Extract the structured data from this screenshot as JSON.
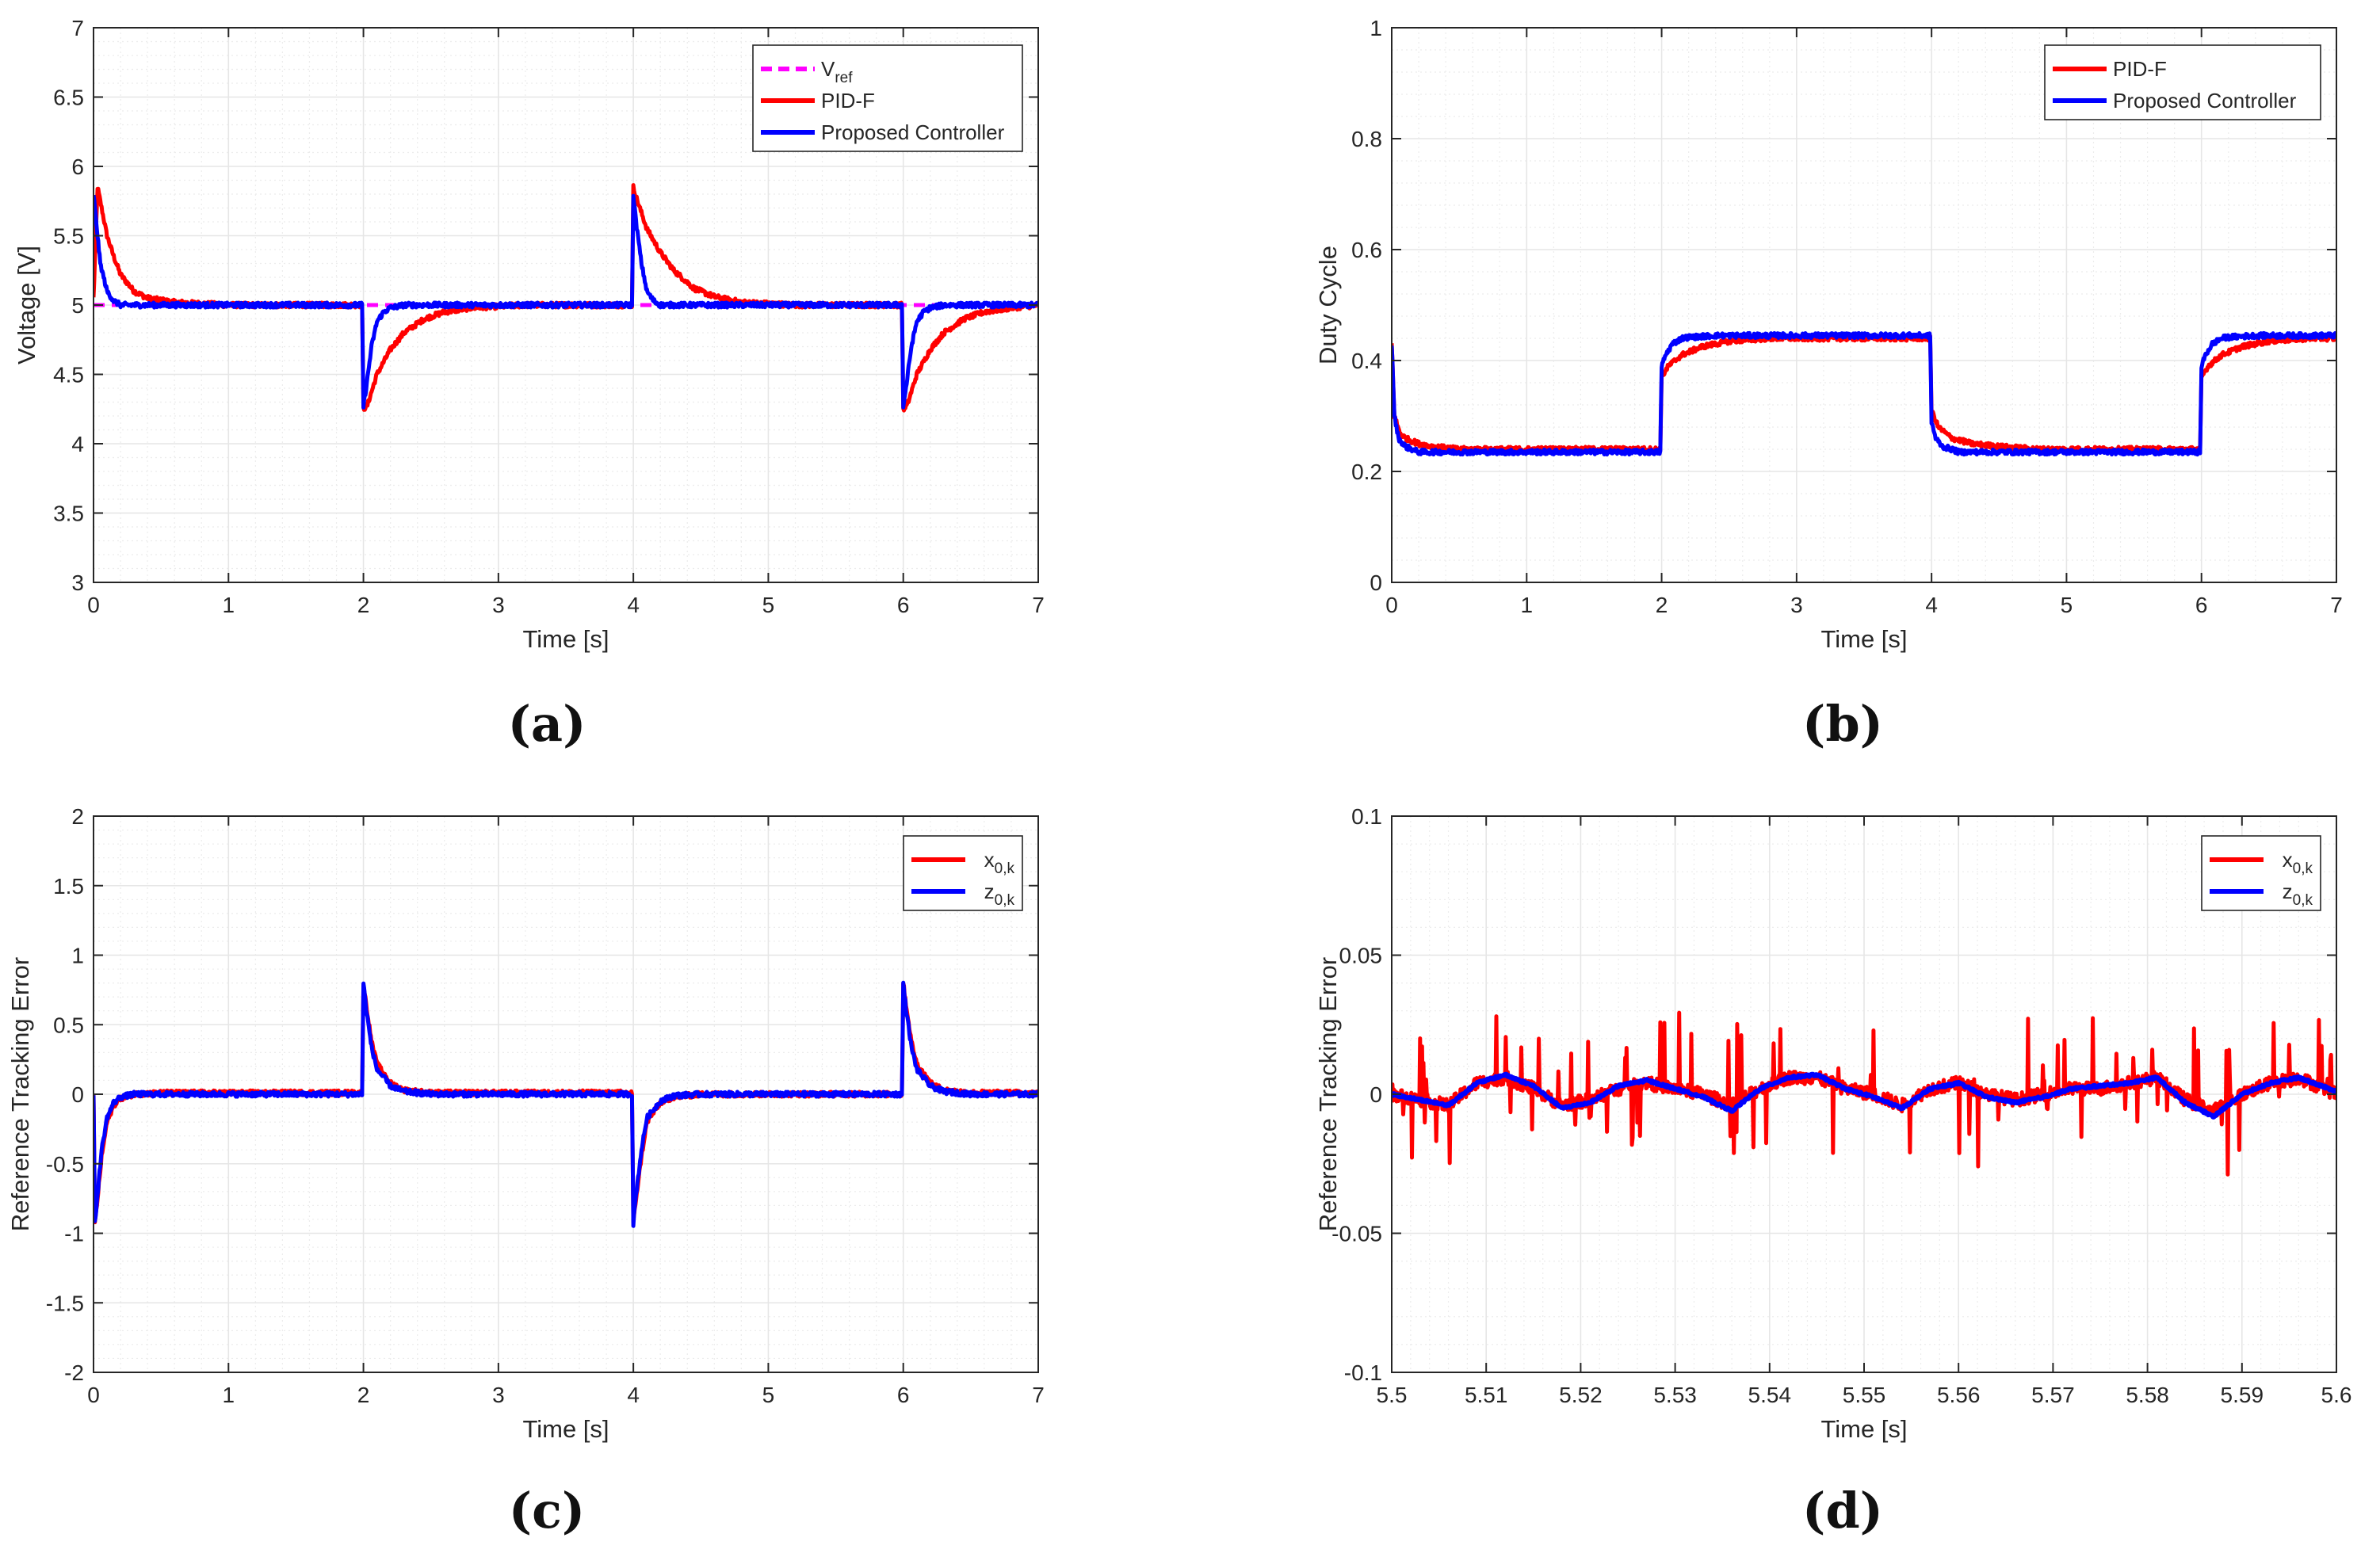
{
  "figure": {
    "panel_labels": [
      "(a)",
      "(b)",
      "(c)",
      "(d)"
    ]
  },
  "colors": {
    "pid": "#ff0000",
    "proposed": "#0000ff",
    "vref": "#ff00ff",
    "grid": "#e6e6e6",
    "axis": "#262626"
  },
  "chart_data": [
    {
      "id": "a",
      "type": "line",
      "title": "",
      "xlabel": "Time [s]",
      "ylabel": "Voltage [V]",
      "xlim": [
        0,
        7
      ],
      "ylim": [
        3,
        7
      ],
      "xticks": [
        0,
        1,
        2,
        3,
        4,
        5,
        6,
        7
      ],
      "xtick_labels": [
        "0",
        "1",
        "2",
        "3",
        "4",
        "5",
        "6",
        "7"
      ],
      "yticks": [
        3,
        3.5,
        4,
        4.5,
        5,
        5.5,
        6,
        6.5,
        7
      ],
      "ytick_labels": [
        "3",
        "3.5",
        "4",
        "4.5",
        "5",
        "5.5",
        "6",
        "6.5",
        "7"
      ],
      "grid": true,
      "legend_position": "top-right",
      "series": [
        {
          "name": "V",
          "name_sub": "ref",
          "style": "dashed",
          "color": "#ff00ff",
          "x": [
            0,
            7
          ],
          "y": [
            5,
            5
          ]
        },
        {
          "name": "PID-F",
          "style": "noisy",
          "color": "#ff0000",
          "x": [
            0,
            0.03,
            0.06,
            0.1,
            0.15,
            0.2,
            0.3,
            0.4,
            0.6,
            1.0,
            1.99,
            2.0,
            2.03,
            2.1,
            2.2,
            2.3,
            2.45,
            2.6,
            2.8,
            3.2,
            3.99,
            4.0,
            4.03,
            4.1,
            4.2,
            4.3,
            4.45,
            4.6,
            4.8,
            5.2,
            5.99,
            6.0,
            6.03,
            6.1,
            6.2,
            6.3,
            6.45,
            6.6,
            6.8,
            7.0
          ],
          "y": [
            5.05,
            5.85,
            5.7,
            5.5,
            5.35,
            5.22,
            5.1,
            5.05,
            5.02,
            5.0,
            5.0,
            4.25,
            4.28,
            4.5,
            4.68,
            4.8,
            4.9,
            4.95,
            4.98,
            5.0,
            5.0,
            5.85,
            5.75,
            5.55,
            5.38,
            5.25,
            5.12,
            5.06,
            5.02,
            5.0,
            5.0,
            4.25,
            4.28,
            4.5,
            4.68,
            4.8,
            4.9,
            4.95,
            4.98,
            5.0
          ]
        },
        {
          "name": "Proposed Controller",
          "style": "noisy",
          "color": "#0000ff",
          "x": [
            0,
            0.02,
            0.05,
            0.1,
            0.15,
            0.2,
            0.3,
            0.5,
            1.0,
            1.99,
            2.0,
            2.02,
            2.06,
            2.1,
            2.15,
            2.2,
            2.3,
            2.5,
            3.0,
            3.99,
            4.0,
            4.02,
            4.06,
            4.1,
            4.15,
            4.2,
            4.3,
            4.5,
            5.0,
            5.99,
            6.0,
            6.02,
            6.06,
            6.1,
            6.15,
            6.2,
            6.3,
            6.5,
            7.0
          ],
          "y": [
            5.8,
            5.6,
            5.3,
            5.1,
            5.03,
            5.0,
            5.0,
            5.0,
            5.0,
            5.0,
            4.27,
            4.4,
            4.7,
            4.88,
            4.95,
            4.98,
            5.0,
            5.0,
            5.0,
            5.0,
            5.8,
            5.6,
            5.3,
            5.1,
            5.03,
            5.0,
            5.0,
            5.0,
            5.0,
            5.0,
            4.27,
            4.4,
            4.7,
            4.88,
            4.95,
            4.98,
            5.0,
            5.0,
            5.0
          ]
        }
      ]
    },
    {
      "id": "b",
      "type": "line",
      "title": "",
      "xlabel": "Time [s]",
      "ylabel": "Duty Cycle",
      "xlim": [
        0,
        7
      ],
      "ylim": [
        0,
        1
      ],
      "xticks": [
        0,
        1,
        2,
        3,
        4,
        5,
        6,
        7
      ],
      "xtick_labels": [
        "0",
        "1",
        "2",
        "3",
        "4",
        "5",
        "6",
        "7"
      ],
      "yticks": [
        0,
        0.2,
        0.4,
        0.6,
        0.8,
        1
      ],
      "ytick_labels": [
        "0",
        "0.2",
        "0.4",
        "0.6",
        "0.8",
        "1"
      ],
      "grid": true,
      "legend_position": "top-right",
      "series": [
        {
          "name": "PID-F",
          "style": "noisy",
          "color": "#ff0000",
          "x": [
            0,
            0.02,
            0.06,
            0.1,
            0.2,
            0.3,
            0.5,
            1.0,
            1.99,
            2.0,
            2.05,
            2.15,
            2.3,
            2.5,
            2.8,
            3.2,
            3.99,
            4.0,
            4.05,
            4.15,
            4.3,
            4.5,
            4.8,
            5.2,
            5.99,
            6.0,
            6.05,
            6.15,
            6.3,
            6.5,
            6.8,
            7.0
          ],
          "y": [
            0.43,
            0.3,
            0.27,
            0.26,
            0.25,
            0.245,
            0.24,
            0.24,
            0.24,
            0.37,
            0.39,
            0.41,
            0.425,
            0.435,
            0.44,
            0.44,
            0.44,
            0.31,
            0.28,
            0.26,
            0.25,
            0.245,
            0.24,
            0.24,
            0.24,
            0.37,
            0.39,
            0.41,
            0.425,
            0.435,
            0.44,
            0.44
          ]
        },
        {
          "name": "Proposed Controller",
          "style": "noisy",
          "color": "#0000ff",
          "x": [
            0,
            0.02,
            0.05,
            0.1,
            0.15,
            0.2,
            0.5,
            1.0,
            1.99,
            2.0,
            2.03,
            2.08,
            2.15,
            2.2,
            2.4,
            3.0,
            3.99,
            4.0,
            4.03,
            4.08,
            4.15,
            4.2,
            4.5,
            5.0,
            5.99,
            6.0,
            6.03,
            6.08,
            6.15,
            6.2,
            6.4,
            7.0
          ],
          "y": [
            0.43,
            0.3,
            0.26,
            0.245,
            0.24,
            0.235,
            0.235,
            0.235,
            0.235,
            0.39,
            0.41,
            0.43,
            0.44,
            0.442,
            0.445,
            0.445,
            0.445,
            0.29,
            0.26,
            0.245,
            0.24,
            0.235,
            0.235,
            0.235,
            0.235,
            0.39,
            0.41,
            0.43,
            0.44,
            0.442,
            0.445,
            0.445
          ]
        }
      ]
    },
    {
      "id": "c",
      "type": "line",
      "title": "",
      "xlabel": "Time [s]",
      "ylabel": "Reference Tracking Error",
      "xlim": [
        0,
        7
      ],
      "ylim": [
        -2,
        2
      ],
      "xticks": [
        0,
        1,
        2,
        3,
        4,
        5,
        6,
        7
      ],
      "xtick_labels": [
        "0",
        "1",
        "2",
        "3",
        "4",
        "5",
        "6",
        "7"
      ],
      "yticks": [
        -2,
        -1.5,
        -1,
        -0.5,
        0,
        0.5,
        1,
        1.5,
        2
      ],
      "ytick_labels": [
        "-2",
        "-1.5",
        "-1",
        "-0.5",
        "0",
        "0.5",
        "1",
        "1.5",
        "2"
      ],
      "grid": true,
      "legend_position": "top-right",
      "series": [
        {
          "name": "x",
          "name_sub": "0,k",
          "style": "noisy",
          "color": "#ff0000",
          "x": [
            0,
            0.01,
            0.03,
            0.06,
            0.1,
            0.15,
            0.2,
            0.3,
            0.5,
            1.0,
            1.99,
            2.0,
            2.02,
            2.06,
            2.1,
            2.2,
            2.3,
            2.5,
            3.0,
            3.99,
            4.0,
            4.02,
            4.06,
            4.1,
            4.2,
            4.3,
            4.5,
            5.0,
            5.99,
            6.0,
            6.02,
            6.06,
            6.1,
            6.2,
            6.3,
            6.5,
            7.0
          ],
          "y": [
            0,
            -0.93,
            -0.75,
            -0.45,
            -0.2,
            -0.08,
            -0.03,
            0,
            0.01,
            0.01,
            0.01,
            0.8,
            0.65,
            0.38,
            0.22,
            0.08,
            0.03,
            0.01,
            0.01,
            0.01,
            -0.93,
            -0.75,
            -0.45,
            -0.2,
            -0.06,
            -0.02,
            0,
            0,
            0,
            0.8,
            0.65,
            0.38,
            0.22,
            0.08,
            0.03,
            0.01,
            0.01
          ]
        },
        {
          "name": "z",
          "name_sub": "0,k",
          "style": "noisy",
          "color": "#0000ff",
          "x": [
            0,
            0.01,
            0.03,
            0.06,
            0.1,
            0.15,
            0.2,
            0.3,
            0.5,
            1.0,
            1.99,
            2.0,
            2.02,
            2.06,
            2.1,
            2.2,
            2.3,
            2.5,
            3.0,
            3.99,
            4.0,
            4.02,
            4.06,
            4.1,
            4.2,
            4.3,
            4.5,
            5.0,
            5.99,
            6.0,
            6.02,
            6.06,
            6.1,
            6.2,
            6.3,
            6.5,
            7.0
          ],
          "y": [
            0,
            -0.93,
            -0.72,
            -0.4,
            -0.17,
            -0.06,
            -0.02,
            0,
            0,
            0,
            0,
            0.8,
            0.62,
            0.34,
            0.18,
            0.06,
            0.02,
            0,
            0,
            0,
            -0.93,
            -0.72,
            -0.4,
            -0.17,
            -0.05,
            -0.01,
            0,
            0,
            0,
            0.8,
            0.62,
            0.34,
            0.18,
            0.06,
            0.02,
            0,
            0
          ]
        }
      ]
    },
    {
      "id": "d",
      "type": "line",
      "title": "",
      "xlabel": "Time [s]",
      "ylabel": "Reference Tracking Error",
      "xlim": [
        5.5,
        5.6
      ],
      "ylim": [
        -0.1,
        0.1
      ],
      "xticks": [
        5.5,
        5.51,
        5.52,
        5.53,
        5.54,
        5.55,
        5.56,
        5.57,
        5.58,
        5.59,
        5.6
      ],
      "xtick_labels": [
        "5.5",
        "5.51",
        "5.52",
        "5.53",
        "5.54",
        "5.55",
        "5.56",
        "5.57",
        "5.58",
        "5.59",
        "5.6"
      ],
      "yticks": [
        -0.1,
        -0.05,
        0,
        0.05,
        0.1
      ],
      "ytick_labels": [
        "-0.1",
        "-0.05",
        "0",
        "0.05",
        "0.1"
      ],
      "grid": true,
      "legend_position": "top-right",
      "series": [
        {
          "name": "x",
          "name_sub": "0,k",
          "style": "spiky",
          "color": "#ff0000",
          "x": [
            5.5,
            5.503,
            5.506,
            5.509,
            5.512,
            5.515,
            5.518,
            5.521,
            5.524,
            5.527,
            5.53,
            5.533,
            5.536,
            5.539,
            5.542,
            5.545,
            5.548,
            5.551,
            5.554,
            5.557,
            5.56,
            5.563,
            5.566,
            5.569,
            5.572,
            5.575,
            5.578,
            5.581,
            5.584,
            5.587,
            5.59,
            5.593,
            5.596,
            5.6
          ],
          "y": [
            0,
            -0.002,
            -0.004,
            0.004,
            0.006,
            0.002,
            -0.004,
            -0.002,
            0.002,
            0.004,
            0.002,
            0,
            -0.004,
            0.002,
            0.006,
            0.006,
            0.002,
            0,
            -0.004,
            0.002,
            0.004,
            0,
            -0.002,
            0,
            0.002,
            0.002,
            0.004,
            0.006,
            -0.002,
            -0.006,
            0,
            0.004,
            0.006,
            0
          ]
        },
        {
          "name": "z",
          "name_sub": "0,k",
          "style": "smooth",
          "color": "#0000ff",
          "x": [
            5.5,
            5.503,
            5.506,
            5.509,
            5.512,
            5.515,
            5.518,
            5.521,
            5.524,
            5.527,
            5.53,
            5.533,
            5.536,
            5.539,
            5.542,
            5.545,
            5.548,
            5.551,
            5.554,
            5.557,
            5.56,
            5.563,
            5.566,
            5.569,
            5.572,
            5.575,
            5.578,
            5.581,
            5.584,
            5.587,
            5.59,
            5.593,
            5.596,
            5.6
          ],
          "y": [
            0,
            -0.002,
            -0.004,
            0.004,
            0.007,
            0.003,
            -0.005,
            -0.003,
            0.003,
            0.005,
            0.002,
            -0.001,
            -0.006,
            0.002,
            0.006,
            0.007,
            0.002,
            -0.001,
            -0.005,
            0.002,
            0.004,
            -0.001,
            -0.003,
            -0.001,
            0.002,
            0.003,
            0.004,
            0.006,
            -0.003,
            -0.008,
            0,
            0.004,
            0.006,
            0.001
          ]
        }
      ]
    }
  ]
}
